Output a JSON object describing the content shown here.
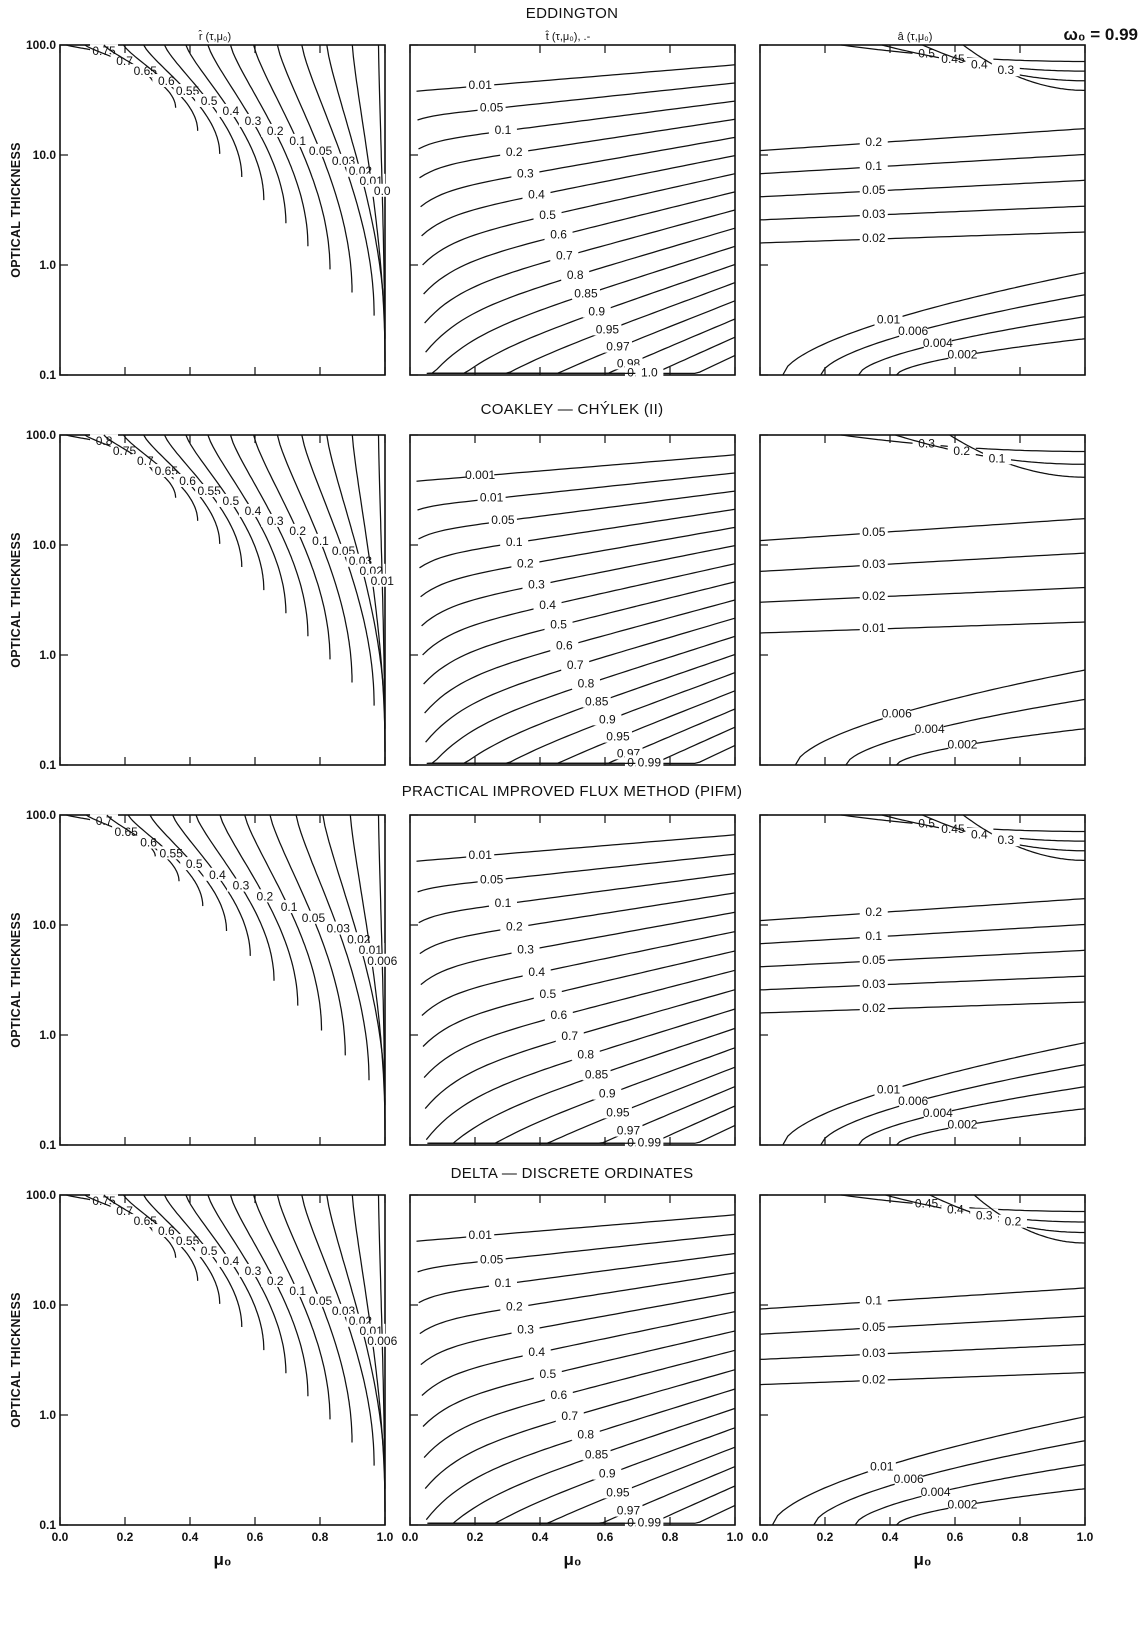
{
  "figure": {
    "omega": "ω₀ = 0.99",
    "column_titles": [
      "r̂ (τ,μ₀)",
      "t̂ (τ,μ₀), .-",
      "â (τ,μ₀)"
    ],
    "ylabel": "OPTICAL THICKNESS",
    "xlabel": "μ₀"
  },
  "chart_data": [
    {
      "type": "contour",
      "title": "EDDINGTON",
      "xlabel": "μ0",
      "ylabel": "OPTICAL THICKNESS",
      "xlim": [
        0,
        1
      ],
      "ylim": [
        0.1,
        100
      ],
      "yscale": "log",
      "yticks": [
        "0.1",
        "1.0",
        "10.0",
        "100.0"
      ],
      "xticks": [
        "0.0",
        "0.2",
        "0.4",
        "0.6",
        "0.8",
        "1.0"
      ],
      "panels": [
        {
          "name": "r̂ (τ,μ0)",
          "kind": "reflectance",
          "levels": [
            "0.75",
            "0.7",
            "0.65",
            "0.6",
            "0.55",
            "0.5",
            "0.4",
            "0.3",
            "0.2",
            "0.1",
            "0.05",
            "0.03",
            "0.02",
            "0.01",
            "0.0"
          ]
        },
        {
          "name": "t̂ (τ,μ0)",
          "kind": "transmittance",
          "levels": [
            "0.01",
            "0.05",
            "0.1",
            "0.2",
            "0.3",
            "0.4",
            "0.5",
            "0.6",
            "0.7",
            "0.8",
            "0.85",
            "0.9",
            "0.95",
            "0.97",
            "0.98",
            "0.99",
            "1.0"
          ]
        },
        {
          "name": "â (τ,μ0)",
          "kind": "absorptance",
          "levels": [
            "0.5",
            "0.45",
            "0.4",
            "0.3",
            "0.2",
            "0.1",
            "0.05",
            "0.03",
            "0.02",
            "0.01",
            "0.006",
            "0.004",
            "0.002"
          ]
        }
      ]
    },
    {
      "type": "contour",
      "title": "COAKLEY — CHÝLEK (II)",
      "xlabel": "μ0",
      "ylabel": "OPTICAL THICKNESS",
      "xlim": [
        0,
        1
      ],
      "ylim": [
        0.1,
        100
      ],
      "yscale": "log",
      "yticks": [
        "0.1",
        "1.0",
        "10.0",
        "100.0"
      ],
      "xticks": [
        "0.0",
        "0.2",
        "0.4",
        "0.6",
        "0.8",
        "1.0"
      ],
      "panels": [
        {
          "name": "r̂ (τ,μ0)",
          "kind": "reflectance",
          "levels": [
            "0.8",
            "0.75",
            "0.7",
            "0.65",
            "0.6",
            "0.55",
            "0.5",
            "0.4",
            "0.3",
            "0.2",
            "0.1",
            "0.05",
            "0.03",
            "0.02",
            "0.01"
          ]
        },
        {
          "name": "t̂ (τ,μ0)",
          "kind": "transmittance",
          "levels": [
            "0.001",
            "0.01",
            "0.05",
            "0.1",
            "0.2",
            "0.3",
            "0.4",
            "0.5",
            "0.6",
            "0.7",
            "0.8",
            "0.85",
            "0.9",
            "0.95",
            "0.97",
            "0.98",
            "0.99"
          ]
        },
        {
          "name": "â (τ,μ0)",
          "kind": "absorptance",
          "levels": [
            "0.3",
            "0.2",
            "0.1",
            "0.05",
            "0.03",
            "0.02",
            "0.01",
            "0.006",
            "0.004",
            "0.002"
          ]
        }
      ]
    },
    {
      "type": "contour",
      "title": "PRACTICAL IMPROVED FLUX METHOD (PIFM)",
      "xlabel": "μ0",
      "ylabel": "OPTICAL THICKNESS",
      "xlim": [
        0,
        1
      ],
      "ylim": [
        0.1,
        100
      ],
      "yscale": "log",
      "yticks": [
        "0.1",
        "1.0",
        "10.0",
        "100.0"
      ],
      "xticks": [
        "0.0",
        "0.2",
        "0.4",
        "0.6",
        "0.8",
        "1.0"
      ],
      "panels": [
        {
          "name": "r̂ (τ,μ0)",
          "kind": "reflectance",
          "levels": [
            "0.7",
            "0.65",
            "0.6",
            "0.55",
            "0.5",
            "0.4",
            "0.3",
            "0.2",
            "0.1",
            "0.05",
            "0.03",
            "0.02",
            "0.01",
            "0.006"
          ]
        },
        {
          "name": "t̂ (τ,μ0)",
          "kind": "transmittance",
          "levels": [
            "0.01",
            "0.05",
            "0.1",
            "0.2",
            "0.3",
            "0.4",
            "0.5",
            "0.6",
            "0.7",
            "0.8",
            "0.85",
            "0.9",
            "0.95",
            "0.97",
            "0.98",
            "0.99"
          ]
        },
        {
          "name": "â (τ,μ0)",
          "kind": "absorptance",
          "levels": [
            "0.5",
            "0.45",
            "0.4",
            "0.3",
            "0.2",
            "0.1",
            "0.05",
            "0.03",
            "0.02",
            "0.01",
            "0.006",
            "0.004",
            "0.002"
          ]
        }
      ]
    },
    {
      "type": "contour",
      "title": "DELTA — DISCRETE ORDINATES",
      "xlabel": "μ0",
      "ylabel": "OPTICAL THICKNESS",
      "xlim": [
        0,
        1
      ],
      "ylim": [
        0.1,
        100
      ],
      "yscale": "log",
      "yticks": [
        "0.1",
        "1.0",
        "10.0",
        "100.0"
      ],
      "xticks": [
        "0.0",
        "0.2",
        "0.4",
        "0.6",
        "0.8",
        "1.0"
      ],
      "panels": [
        {
          "name": "r̂ (τ,μ0)",
          "kind": "reflectance",
          "levels": [
            "0.75",
            "0.7",
            "0.65",
            "0.6",
            "0.55",
            "0.5",
            "0.4",
            "0.3",
            "0.2",
            "0.1",
            "0.05",
            "0.03",
            "0.02",
            "0.01",
            "0.006"
          ]
        },
        {
          "name": "t̂ (τ,μ0)",
          "kind": "transmittance",
          "levels": [
            "0.01",
            "0.05",
            "0.1",
            "0.2",
            "0.3",
            "0.4",
            "0.5",
            "0.6",
            "0.7",
            "0.8",
            "0.85",
            "0.9",
            "0.95",
            "0.97",
            "0.98",
            "0.99"
          ]
        },
        {
          "name": "â (τ,μ0)",
          "kind": "absorptance",
          "levels": [
            "0.45",
            "0.4",
            "0.3",
            "0.2",
            "0.1",
            "0.05",
            "0.03",
            "0.02",
            "0.01",
            "0.006",
            "0.004",
            "0.002"
          ]
        }
      ]
    }
  ]
}
